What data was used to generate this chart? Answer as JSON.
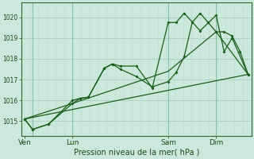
{
  "bg_color": "#cce8dc",
  "grid_color_major": "#aacfbf",
  "grid_color_minor": "#bbddd0",
  "line_color": "#1a5c1a",
  "title": "Pression niveau de la mer( hPa )",
  "ylabel_ticks": [
    1015,
    1016,
    1017,
    1018,
    1019,
    1020
  ],
  "ylim": [
    1014.3,
    1020.7
  ],
  "x_tick_labels": [
    "Ven",
    "Lun",
    "Sam",
    "Dim"
  ],
  "x_tick_positions": [
    0,
    3,
    9,
    12
  ],
  "xlim": [
    -0.2,
    14.2
  ],
  "series1_x": [
    0,
    0.5,
    1.5,
    3,
    3.5,
    4,
    5,
    5.5,
    6,
    7,
    8,
    9,
    9.5,
    10,
    10.5,
    11,
    11.5,
    12,
    12.5,
    13,
    13.5,
    14
  ],
  "series1_y": [
    1015.1,
    1014.6,
    1014.85,
    1015.85,
    1016.1,
    1016.15,
    1017.55,
    1017.75,
    1017.5,
    1017.15,
    1016.65,
    1016.9,
    1017.35,
    1018.1,
    1019.75,
    1020.2,
    1019.75,
    1019.3,
    1019.3,
    1019.1,
    1018.35,
    1017.25
  ],
  "series2_x": [
    0,
    0.5,
    1.5,
    3,
    3.5,
    4,
    5,
    5.5,
    6,
    7,
    8,
    9,
    9.5,
    10,
    11,
    12,
    12.5,
    13,
    14
  ],
  "series2_y": [
    1015.1,
    1014.6,
    1014.85,
    1016.0,
    1016.1,
    1016.15,
    1017.55,
    1017.75,
    1017.65,
    1017.65,
    1016.6,
    1019.75,
    1019.75,
    1020.2,
    1019.35,
    1020.1,
    1018.35,
    1019.0,
    1017.25
  ],
  "series3_x": [
    0,
    3,
    9,
    12,
    14
  ],
  "series3_y": [
    1015.1,
    1015.85,
    1017.4,
    1019.3,
    1017.25
  ],
  "series4_x": [
    0,
    14
  ],
  "series4_y": [
    1015.1,
    1017.25
  ],
  "vline_x": [
    0.5,
    3,
    9,
    12
  ],
  "num_minor_vgrid": 28
}
